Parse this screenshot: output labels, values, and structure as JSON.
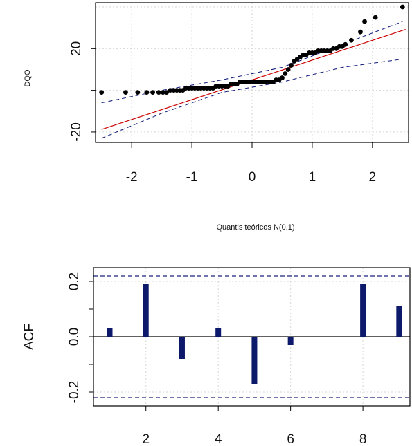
{
  "chart_data": [
    {
      "type": "scatter",
      "xlabel": "Quantis teóricos N(0,1)",
      "ylabel": "DQO",
      "xlim": [
        -2.6,
        2.6
      ],
      "ylim": [
        -25,
        42
      ],
      "x_ticks": [
        -2,
        -1,
        0,
        1,
        2
      ],
      "x_tick_labels": [
        "-2",
        "-1",
        "0",
        "1",
        "2"
      ],
      "y_ticks": [
        -20,
        20
      ],
      "y_tick_labels": [
        "-20",
        "20"
      ],
      "grid": true,
      "reference_line": {
        "intercept": 5,
        "slope": 9.5,
        "color": "#cc0000"
      },
      "envelope": {
        "upper": {
          "x": [
            -2.5,
            -1.5,
            -0.5,
            0.5,
            1.5,
            2.5
          ],
          "y": [
            -6,
            0,
            5,
            11,
            22,
            33
          ]
        },
        "lower": {
          "x": [
            -2.5,
            -1.5,
            -0.5,
            0.5,
            1.5,
            2.5
          ],
          "y": [
            -23,
            -11,
            -1,
            4,
            11,
            15
          ]
        },
        "color": "#1a237e"
      },
      "points": {
        "x": [
          -2.5,
          -2.1,
          -1.9,
          -1.75,
          -1.65,
          -1.55,
          -1.48,
          -1.42,
          -1.36,
          -1.3,
          -1.25,
          -1.2,
          -1.15,
          -1.1,
          -1.05,
          -1.0,
          -0.95,
          -0.9,
          -0.85,
          -0.8,
          -0.75,
          -0.7,
          -0.65,
          -0.6,
          -0.55,
          -0.5,
          -0.45,
          -0.4,
          -0.35,
          -0.3,
          -0.25,
          -0.2,
          -0.15,
          -0.1,
          -0.05,
          0.0,
          0.05,
          0.1,
          0.15,
          0.2,
          0.25,
          0.3,
          0.35,
          0.4,
          0.45,
          0.5,
          0.55,
          0.6,
          0.65,
          0.7,
          0.75,
          0.8,
          0.85,
          0.9,
          0.95,
          1.0,
          1.05,
          1.1,
          1.15,
          1.2,
          1.25,
          1.3,
          1.35,
          1.4,
          1.45,
          1.5,
          1.55,
          1.65,
          1.8,
          1.87,
          2.05,
          2.5
        ],
        "y": [
          -1,
          -1,
          -1,
          -1,
          -1,
          -1,
          -1,
          -1,
          0,
          0,
          0,
          0,
          0,
          1,
          1,
          1,
          1,
          1,
          1,
          1,
          1,
          1,
          1,
          2,
          2,
          2,
          2,
          2,
          3,
          3,
          3,
          4,
          4,
          4,
          4,
          4,
          4,
          4,
          4,
          4,
          4,
          4,
          4,
          5,
          5,
          6,
          8,
          10,
          12,
          14,
          15,
          16,
          17,
          17,
          18,
          18,
          18,
          19,
          19,
          19,
          19,
          19,
          20,
          20,
          21,
          21,
          22,
          24,
          28,
          33,
          35,
          40
        ]
      }
    },
    {
      "type": "bar",
      "ylabel": "ACF",
      "xlim": [
        0.55,
        9.3
      ],
      "ylim": [
        -0.25,
        0.25
      ],
      "x_ticks": [
        2,
        4,
        6,
        8
      ],
      "x_tick_labels": [
        "2",
        "4",
        "6",
        "8"
      ],
      "y_ticks": [
        -0.2,
        0.0,
        0.2
      ],
      "y_tick_labels": [
        "-0.2",
        "0.0",
        "0.2"
      ],
      "grid": true,
      "confidence_band": [
        -0.22,
        0.22
      ],
      "lags": [
        1,
        2,
        3,
        4,
        5,
        6,
        7,
        8,
        9
      ],
      "values": [
        0.03,
        0.19,
        -0.08,
        0.03,
        -0.17,
        -0.03,
        0.0,
        0.19,
        0.11
      ],
      "bar_color": "#0d1a6b"
    }
  ]
}
